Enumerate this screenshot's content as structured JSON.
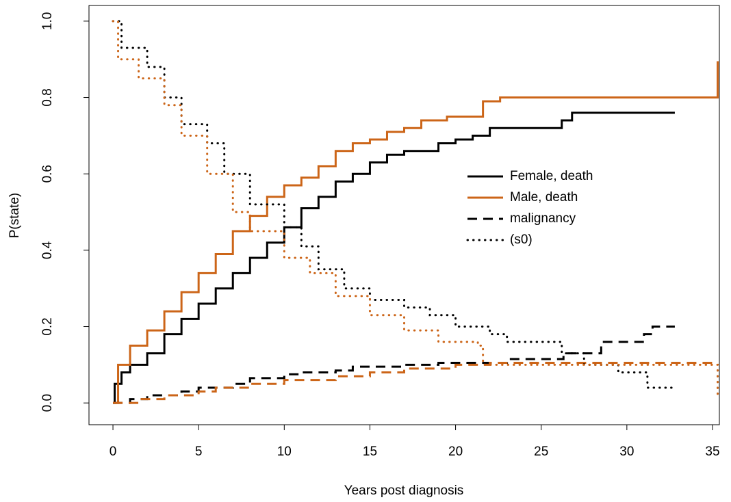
{
  "chart_data": {
    "type": "step",
    "x_label": "Years post diagnosis",
    "y_label": "P(state)",
    "xlim": [
      -1.4,
      35.4
    ],
    "ylim": [
      -0.057,
      1.041
    ],
    "xticks": [
      0,
      5,
      10,
      15,
      20,
      25,
      30,
      35
    ],
    "yticks": [
      {
        "value": 0,
        "label": "0.0"
      },
      {
        "value": 0.2,
        "label": "0.2"
      },
      {
        "value": 0.4,
        "label": "0.4"
      },
      {
        "value": 0.6,
        "label": "0.6"
      },
      {
        "value": 0.8,
        "label": "0.8"
      },
      {
        "value": 1,
        "label": "1.0"
      }
    ],
    "legend": [
      {
        "label": "Female, death",
        "color": "#000000",
        "dash": "solid"
      },
      {
        "label": "Male, death",
        "color": "#cc6518",
        "dash": "solid"
      },
      {
        "label": "malignancy",
        "color": "#000000",
        "dash": "dashed"
      },
      {
        "label": "(s0)",
        "color": "#000000",
        "dash": "dotted"
      }
    ],
    "series": [
      {
        "color": "#000000",
        "dash": "solid",
        "x": [
          0,
          0.1,
          0.5,
          1,
          2,
          3,
          4,
          5,
          6,
          7,
          8,
          9,
          10,
          11,
          12,
          13,
          14,
          15,
          16,
          17,
          19,
          20,
          21,
          22,
          26,
          26.2,
          26.8,
          32.8
        ],
        "values": [
          0,
          0.05,
          0.08,
          0.1,
          0.13,
          0.18,
          0.22,
          0.26,
          0.3,
          0.34,
          0.38,
          0.42,
          0.46,
          0.51,
          0.54,
          0.58,
          0.6,
          0.63,
          0.65,
          0.66,
          0.68,
          0.69,
          0.7,
          0.72,
          0.72,
          0.74,
          0.76,
          0.76
        ]
      },
      {
        "color": "#cc6518",
        "dash": "solid",
        "x": [
          0,
          0.3,
          1,
          2,
          3,
          4,
          5,
          6,
          7,
          8,
          9,
          10,
          11,
          12,
          13,
          14,
          15,
          16,
          17,
          18,
          19.5,
          21.3,
          21.6,
          22.6,
          35.3,
          35.3
        ],
        "values": [
          0,
          0.1,
          0.15,
          0.19,
          0.24,
          0.29,
          0.34,
          0.39,
          0.45,
          0.49,
          0.54,
          0.57,
          0.59,
          0.62,
          0.66,
          0.68,
          0.69,
          0.71,
          0.72,
          0.74,
          0.75,
          0.75,
          0.79,
          0.8,
          0.8,
          0.895
        ]
      },
      {
        "color": "#000000",
        "dash": "dashed",
        "x": [
          0,
          1,
          2,
          4,
          5,
          7,
          8,
          10,
          11,
          13,
          14,
          17,
          19,
          22,
          23,
          26.3,
          28.5,
          31,
          31.5,
          32.8
        ],
        "values": [
          0,
          0.01,
          0.02,
          0.03,
          0.04,
          0.05,
          0.065,
          0.075,
          0.08,
          0.085,
          0.095,
          0.1,
          0.105,
          0.105,
          0.115,
          0.13,
          0.16,
          0.18,
          0.2,
          0.2
        ]
      },
      {
        "color": "#cc6518",
        "dash": "dashed",
        "x": [
          0,
          1.5,
          3,
          5,
          6,
          8,
          10,
          13,
          15,
          17,
          20,
          22,
          35.3
        ],
        "values": [
          0,
          0.01,
          0.02,
          0.03,
          0.04,
          0.05,
          0.06,
          0.07,
          0.08,
          0.09,
          0.1,
          0.105,
          0.105
        ]
      },
      {
        "color": "#000000",
        "dash": "dotted",
        "x": [
          0,
          0.5,
          2,
          3,
          4,
          5.5,
          6.5,
          8,
          10,
          11,
          12,
          13.5,
          15,
          17,
          18.5,
          20,
          22,
          23,
          26,
          26.2,
          27.5,
          29.5,
          31.2,
          32.8
        ],
        "values": [
          1,
          0.93,
          0.88,
          0.8,
          0.73,
          0.68,
          0.6,
          0.52,
          0.46,
          0.41,
          0.35,
          0.3,
          0.27,
          0.25,
          0.23,
          0.2,
          0.18,
          0.16,
          0.16,
          0.13,
          0.1,
          0.08,
          0.04,
          0.04
        ]
      },
      {
        "color": "#cc6518",
        "dash": "dotted",
        "x": [
          0,
          0.3,
          1.5,
          3,
          4,
          5.5,
          7,
          8,
          10,
          11.5,
          13,
          15,
          17,
          19,
          21.3,
          21.6,
          35.3,
          35.3
        ],
        "values": [
          1,
          0.9,
          0.85,
          0.78,
          0.7,
          0.6,
          0.5,
          0.45,
          0.38,
          0.34,
          0.28,
          0.23,
          0.19,
          0.16,
          0.15,
          0.1,
          0.1,
          0.02
        ]
      }
    ]
  }
}
